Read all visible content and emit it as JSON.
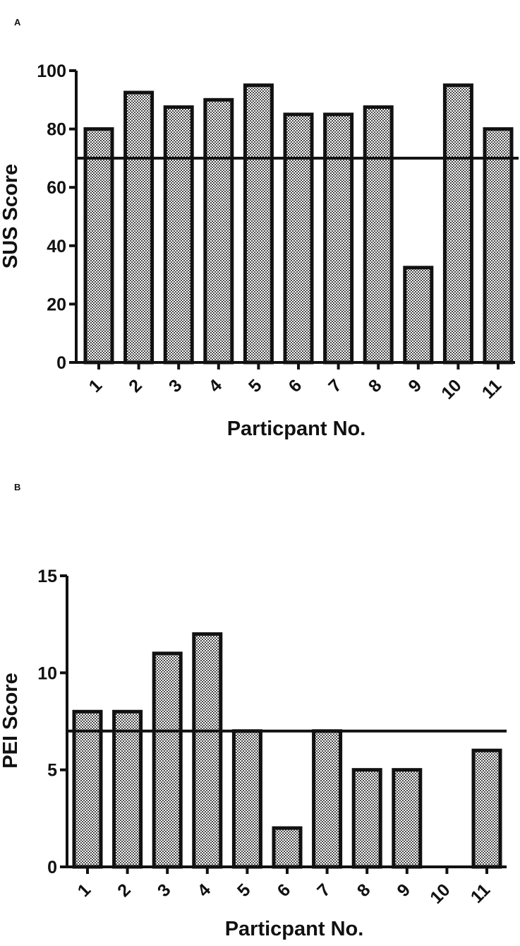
{
  "panels": [
    {
      "letter": "A",
      "chart_data": {
        "type": "bar",
        "categories": [
          "1",
          "2",
          "3",
          "4",
          "5",
          "6",
          "7",
          "8",
          "9",
          "10",
          "11"
        ],
        "values": [
          80,
          92.5,
          87.5,
          90,
          95,
          85,
          85,
          87.5,
          32.5,
          95,
          80
        ],
        "threshold": 70,
        "ylim": [
          0,
          100
        ],
        "yticks": [
          0,
          20,
          40,
          60,
          80,
          100
        ],
        "xlabel": "Particpant No.",
        "ylabel": "SUS Score",
        "grid": false,
        "bar_fill": "checkered-gray",
        "bar_stroke": "#111111"
      }
    },
    {
      "letter": "B",
      "chart_data": {
        "type": "bar",
        "categories": [
          "1",
          "2",
          "3",
          "4",
          "5",
          "6",
          "7",
          "8",
          "9",
          "10",
          "11"
        ],
        "values": [
          8,
          8,
          11,
          12,
          7,
          2,
          7,
          5,
          5,
          0,
          6
        ],
        "threshold": 7,
        "ylim": [
          0,
          15
        ],
        "yticks": [
          0,
          5,
          10,
          15
        ],
        "xlabel": "Particpant No.",
        "ylabel": "PEI Score",
        "grid": false,
        "bar_fill": "checkered-gray",
        "bar_stroke": "#111111"
      }
    }
  ]
}
